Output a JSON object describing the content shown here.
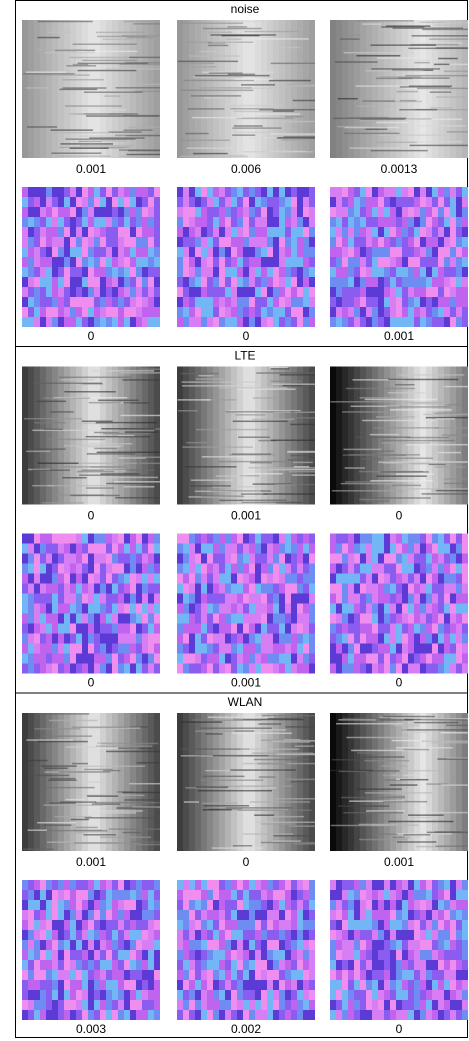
{
  "sections": [
    {
      "title": "noise",
      "rows": [
        [
          "0.001",
          "0.006",
          "0.0013"
        ],
        [
          "0",
          "0",
          "0.001"
        ]
      ]
    },
    {
      "title": "LTE",
      "rows": [
        [
          "0",
          "0.001",
          "0"
        ],
        [
          "0",
          "0.001",
          "0"
        ]
      ]
    },
    {
      "title": "WLAN",
      "rows": [
        [
          "0.001",
          "0",
          "0.001"
        ],
        [
          "0.003",
          "0.002",
          "0"
        ]
      ]
    }
  ]
}
